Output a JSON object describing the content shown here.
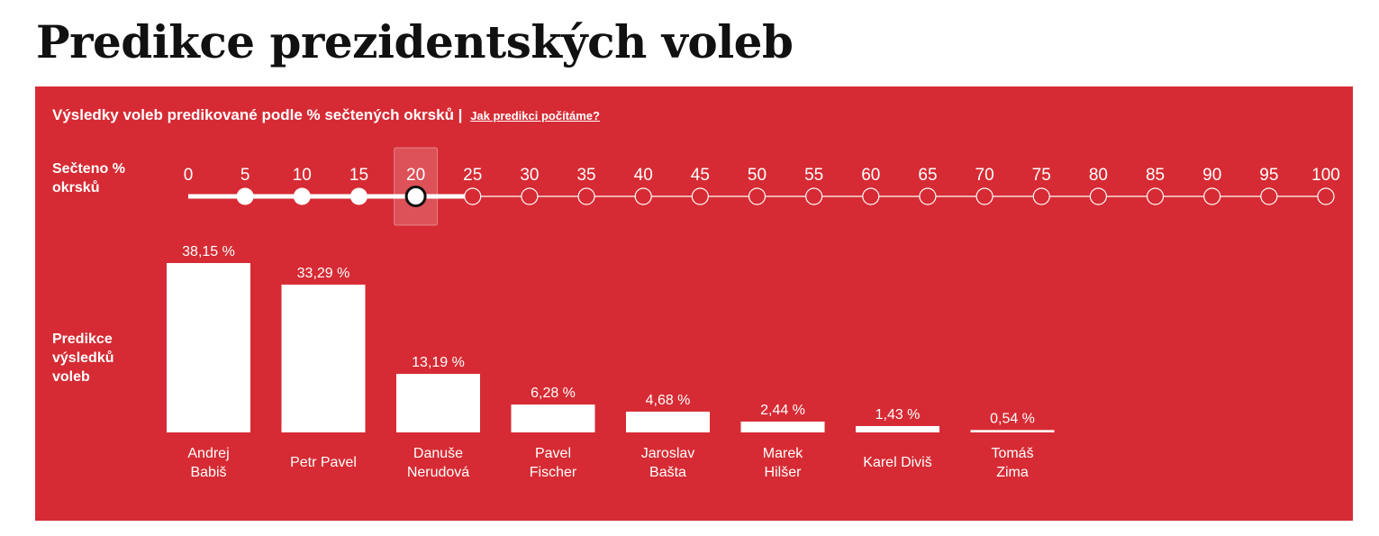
{
  "page": {
    "title": "Predikce prezidentských voleb"
  },
  "panel": {
    "header": "Výsledky voleb predikované podle % sečtených okrsků |",
    "link": "Jak predikci počítáme?",
    "slider_label_line1": "Sečteno %",
    "slider_label_line2": "okrsků",
    "chart_label_line1": "Predikce",
    "chart_label_line2": "výsledků",
    "chart_label_line3": "voleb"
  },
  "slider": {
    "steps": [
      "0",
      "5",
      "10",
      "15",
      "20",
      "25",
      "30",
      "35",
      "40",
      "45",
      "50",
      "55",
      "60",
      "65",
      "70",
      "75",
      "80",
      "85",
      "90",
      "95",
      "100"
    ],
    "selected": 20
  },
  "colors": {
    "panel": "#d62b34",
    "bar": "#ffffff",
    "text": "#ffffff"
  },
  "chart_data": {
    "type": "bar",
    "categories": [
      [
        "Andrej",
        "Babiš"
      ],
      [
        "Petr Pavel"
      ],
      [
        "Danuše",
        "Nerudová"
      ],
      [
        "Pavel",
        "Fischer"
      ],
      [
        "Jaroslav",
        "Bašta"
      ],
      [
        "Marek",
        "Hilšer"
      ],
      [
        "Karel Diviš"
      ],
      [
        "Tomáš",
        "Zima"
      ]
    ],
    "values": [
      38.15,
      33.29,
      13.19,
      6.28,
      4.68,
      2.44,
      1.43,
      0.54
    ],
    "value_labels": [
      "38,15 %",
      "33,29 %",
      "13,19 %",
      "6,28 %",
      "4,68 %",
      "2,44 %",
      "1,43 %",
      "0,54 %"
    ],
    "title": "",
    "xlabel": "",
    "ylabel": ""
  }
}
